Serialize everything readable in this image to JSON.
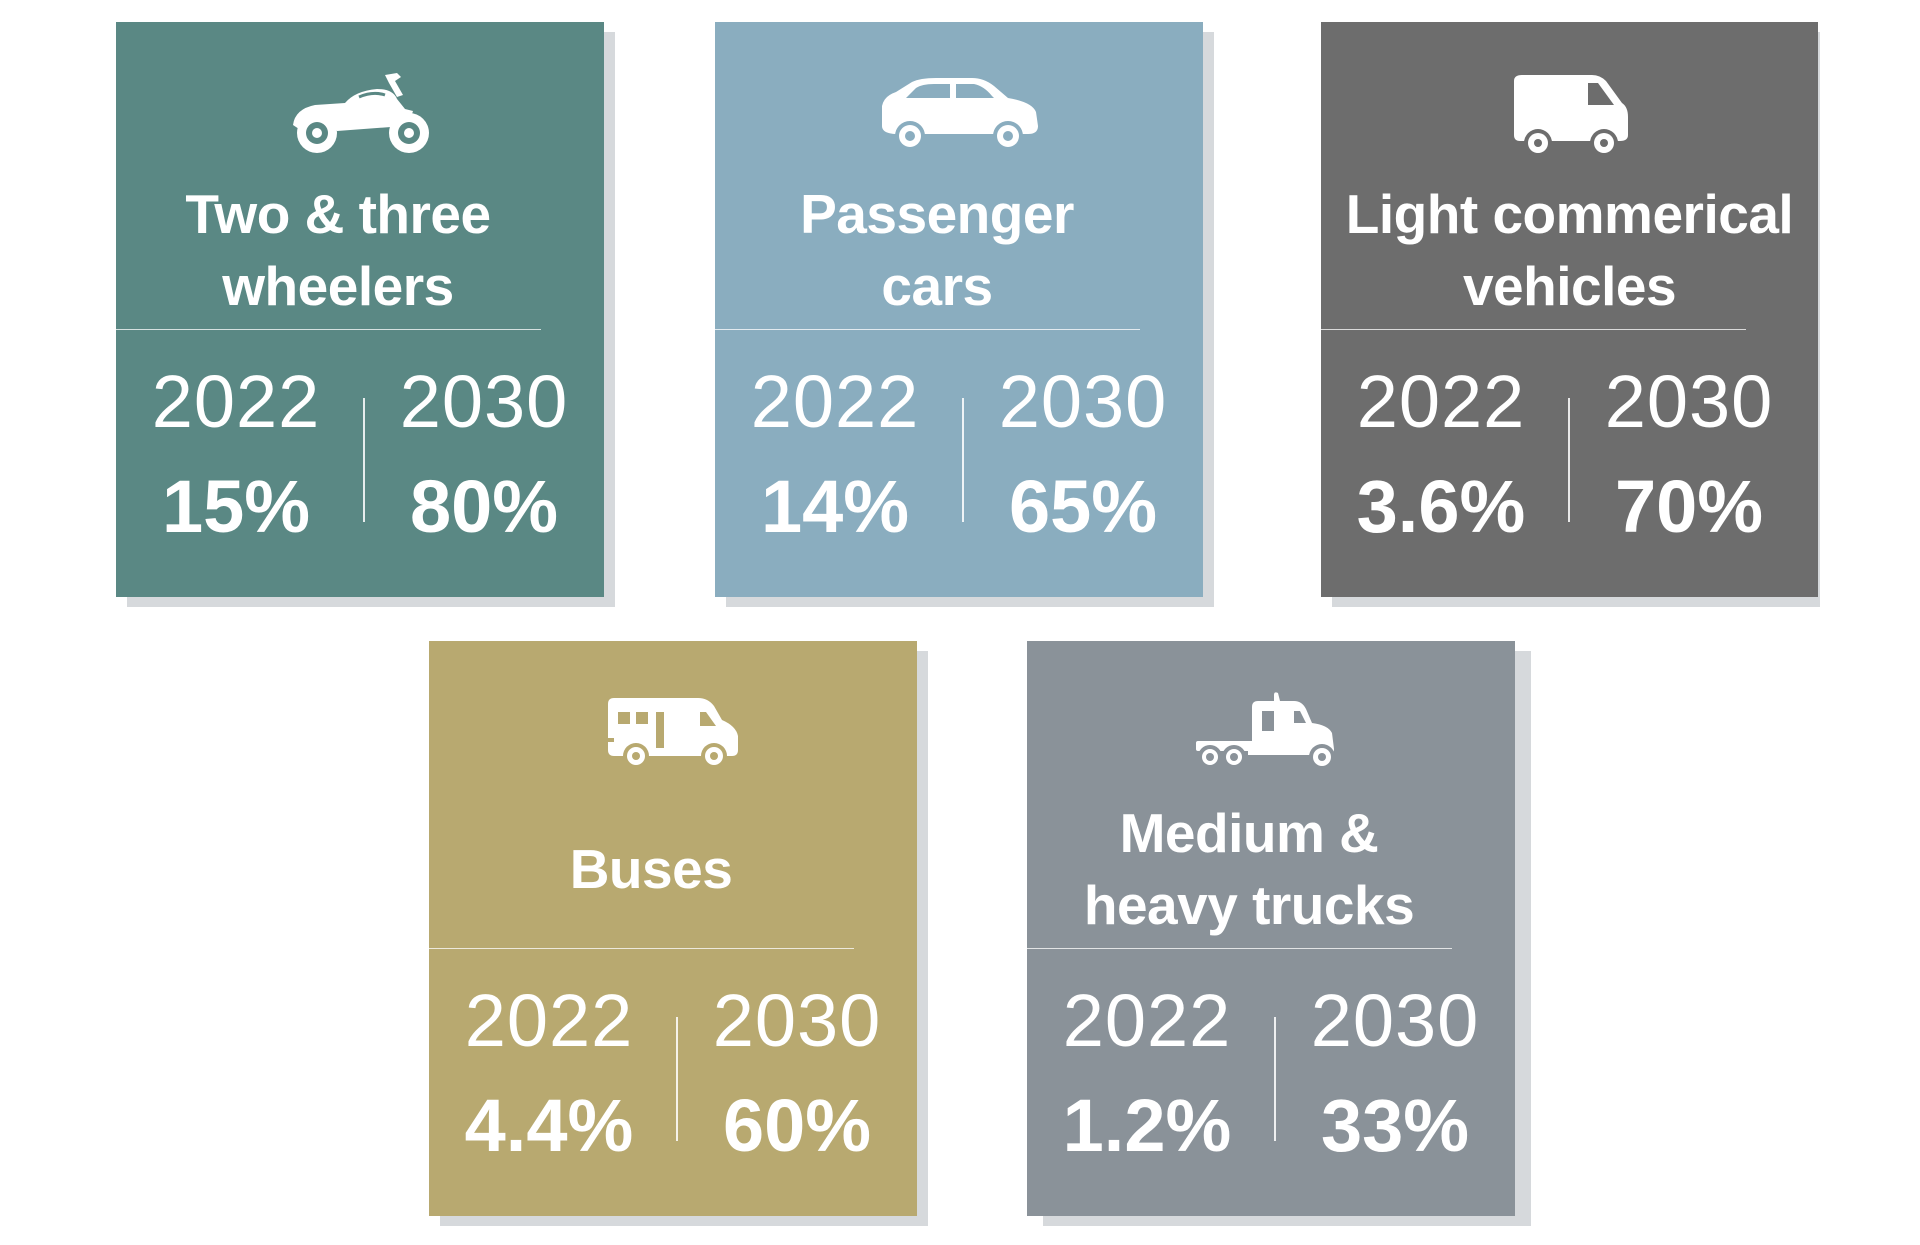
{
  "cards": [
    {
      "title": "Two & three\nwheelers",
      "icon": "motorcycle-icon",
      "color": "#5a8884",
      "year_a": "2022",
      "value_a": "15%",
      "year_b": "2030",
      "value_b": "80%"
    },
    {
      "title": "Passenger\ncars",
      "icon": "car-icon",
      "color": "#8aadbf",
      "year_a": "2022",
      "value_a": "14%",
      "year_b": "2030",
      "value_b": "65%"
    },
    {
      "title": "Light commerical\nvehicles",
      "icon": "van-icon",
      "color": "#6d6d6d",
      "year_a": "2022",
      "value_a": "3.6%",
      "year_b": "2030",
      "value_b": "70%"
    },
    {
      "title": "Buses",
      "icon": "bus-icon",
      "color": "#b8a970",
      "year_a": "2022",
      "value_a": "4.4%",
      "year_b": "2030",
      "value_b": "60%"
    },
    {
      "title": "Medium &\nheavy trucks",
      "icon": "truck-icon",
      "color": "#8a9299",
      "year_a": "2022",
      "value_a": "1.2%",
      "year_b": "2030",
      "value_b": "33%"
    }
  ]
}
